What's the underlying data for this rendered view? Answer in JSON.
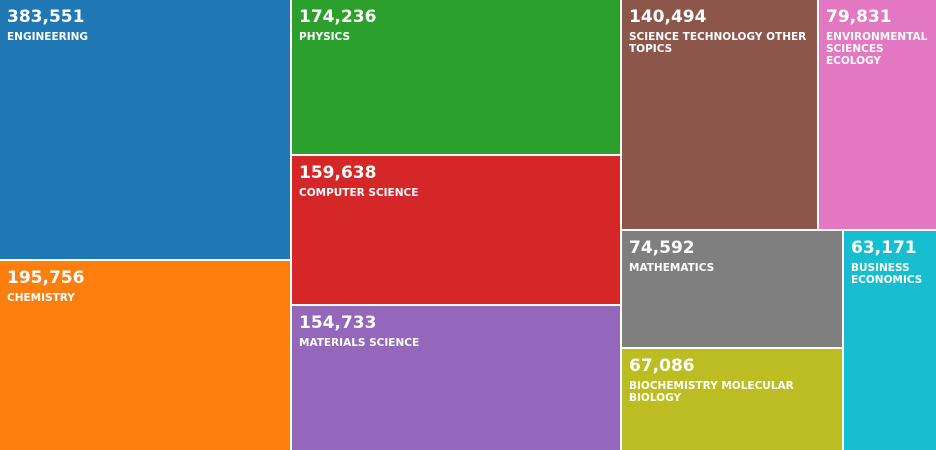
{
  "chart_data": {
    "type": "treemap",
    "categories": [
      "ENGINEERING",
      "CHEMISTRY",
      "PHYSICS",
      "COMPUTER SCIENCE",
      "MATERIALS SCIENCE",
      "SCIENCE TECHNOLOGY OTHER TOPICS",
      "ENVIRONMENTAL SCIENCES ECOLOGY",
      "MATHEMATICS",
      "BIOCHEMISTRY MOLECULAR BIOLOGY",
      "BUSINESS ECONOMICS"
    ],
    "values": [
      383551,
      195756,
      174236,
      159638,
      154733,
      140494,
      79831,
      74592,
      67086,
      63171
    ],
    "value_labels": [
      "383,551",
      "195,756",
      "174,236",
      "159,638",
      "154,733",
      "140,494",
      "79,831",
      "74,592",
      "67,086",
      "63,171"
    ],
    "colors": [
      "#1f77b4",
      "#ff7f0e",
      "#2ca02c",
      "#d62728",
      "#9467bd",
      "#8c564b",
      "#e377c2",
      "#7f7f7f",
      "#bcbd22",
      "#17becf"
    ]
  }
}
